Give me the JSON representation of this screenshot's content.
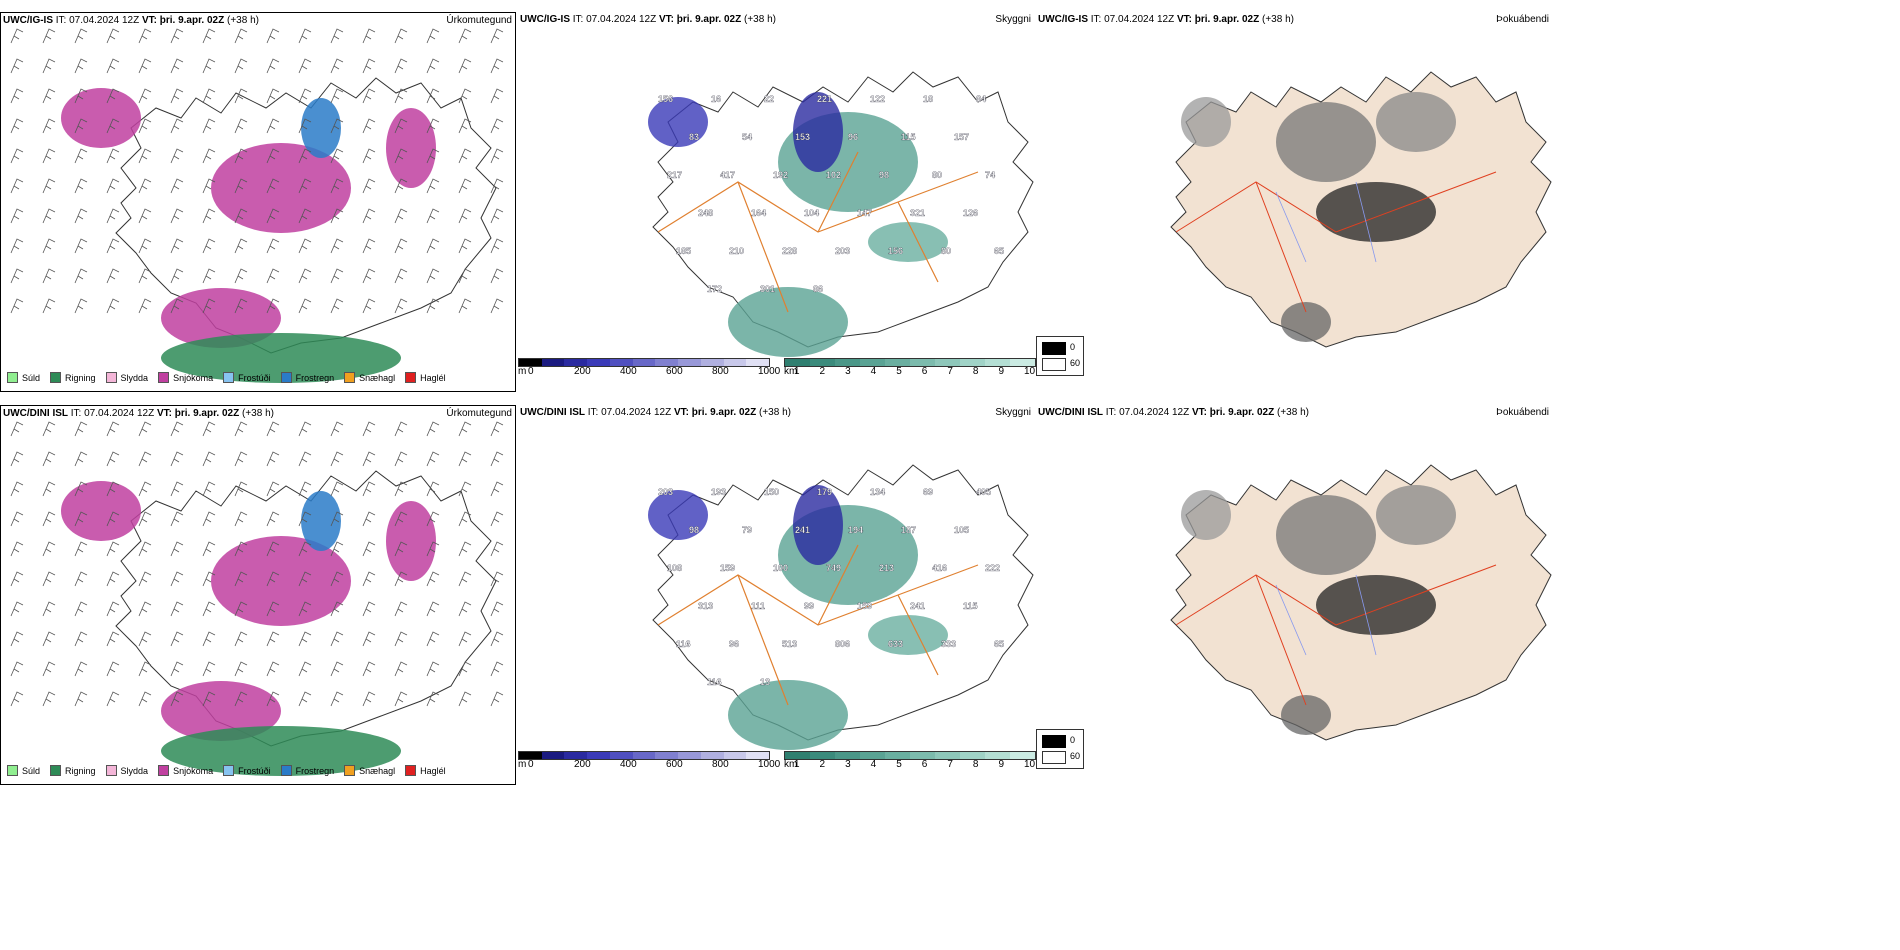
{
  "rows": [
    {
      "model": "UWC/IG-IS",
      "it": "IT: 07.04.2024 12Z",
      "vt": "VT: þri. 9.apr. 02Z",
      "lead": "(+38 h)",
      "titles": [
        "Úrkomutegund",
        "Skyggni",
        "Þokuábendi"
      ],
      "labels": [
        "156",
        "16",
        "22",
        "221",
        "122",
        "18",
        "84",
        "83",
        "54",
        "153",
        "96",
        "115",
        "157",
        "217",
        "417",
        "192",
        "102",
        "98",
        "80",
        "74",
        "248",
        "164",
        "104",
        "147",
        "321",
        "126",
        "185",
        "210",
        "228",
        "203",
        "156",
        "80",
        "65",
        "172",
        "301",
        "86"
      ]
    },
    {
      "model": "UWC/DINI ISL",
      "it": "IT: 07.04.2024 12Z",
      "vt": "VT: þri. 9.apr. 02Z",
      "lead": "(+38 h)",
      "titles": [
        "Úrkomutegund",
        "Skyggni",
        "Þokuábendi"
      ],
      "labels": [
        "203",
        "193",
        "150",
        "179",
        "134",
        "69",
        "405",
        "98",
        "79",
        "241",
        "194",
        "187",
        "105",
        "108",
        "159",
        "100",
        "749",
        "213",
        "416",
        "222",
        "313",
        "111",
        "99",
        "159",
        "241",
        "115",
        "116",
        "96",
        "513",
        "806",
        "633",
        "333",
        "65",
        "116",
        "13"
      ]
    }
  ],
  "precip_legend": [
    {
      "label": "Súld",
      "color": "#90ee90"
    },
    {
      "label": "Rigning",
      "color": "#2e8b57"
    },
    {
      "label": "Slydda",
      "color": "#f4b6d8"
    },
    {
      "label": "Snjókoma",
      "color": "#c040a0"
    },
    {
      "label": "Frostúði",
      "color": "#87c3f0"
    },
    {
      "label": "Frostregn",
      "color": "#2a7bc8"
    },
    {
      "label": "Snæhagl",
      "color": "#f0a020"
    },
    {
      "label": "Haglél",
      "color": "#e02020"
    }
  ],
  "ceiling_scale": {
    "unit": "m",
    "ticks": [
      "0",
      "200",
      "400",
      "600",
      "800",
      "1000"
    ],
    "colors": [
      "#000000",
      "#1a1a80",
      "#2a2aa0",
      "#3a3ab8",
      "#5050c0",
      "#6868c8",
      "#8080d0",
      "#9898d8",
      "#b0b0e0",
      "#c8c8ea",
      "#e0e0f4"
    ]
  },
  "vis_scale": {
    "unit": "km",
    "ticks": [
      "1",
      "2",
      "3",
      "4",
      "5",
      "6",
      "7",
      "8",
      "9",
      "10"
    ],
    "colors": [
      "#2f7f70",
      "#3b8b7c",
      "#4a9788",
      "#5aa394",
      "#6aafa0",
      "#7cbbad",
      "#8ec7ba",
      "#a0d3c7",
      "#b4dfd4",
      "#cbebe3"
    ]
  },
  "fog_legend": {
    "values": [
      "0",
      "60"
    ]
  }
}
